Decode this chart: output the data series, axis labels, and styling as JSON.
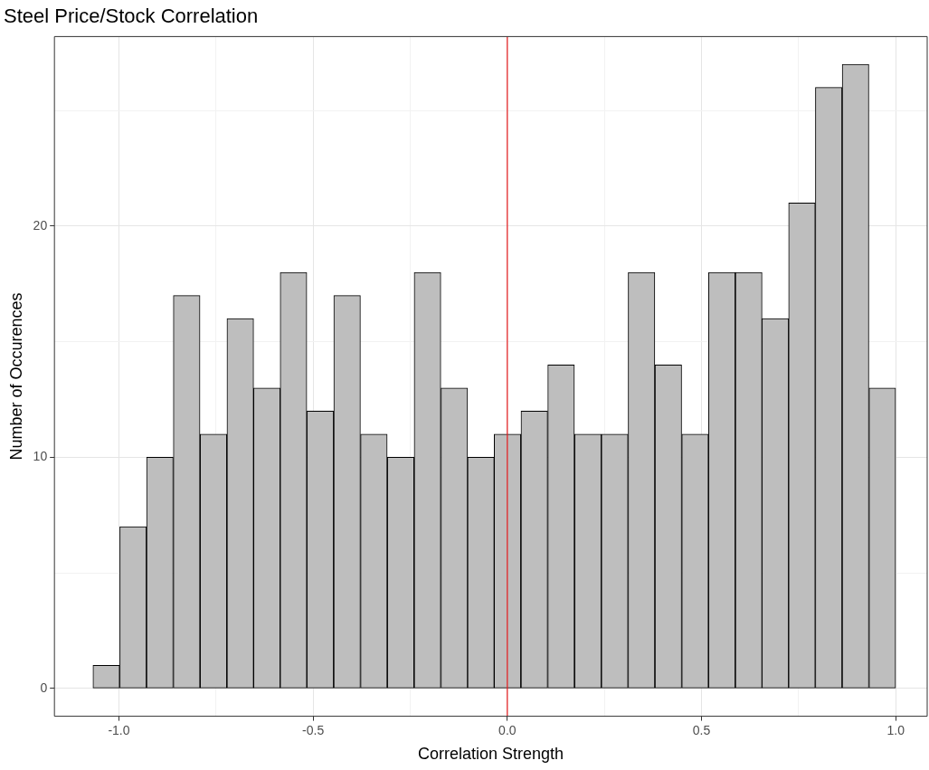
{
  "chart_data": {
    "type": "histogram",
    "title": "Steel Price/Stock Correlation",
    "xlabel": "Correlation Strength",
    "ylabel": "Number of Occurences",
    "bins": [
      -1.067,
      -0.998,
      -0.929,
      -0.86,
      -0.791,
      -0.722,
      -0.653,
      -0.585,
      -0.516,
      -0.447,
      -0.378,
      -0.309,
      -0.24,
      -0.171,
      -0.102,
      -0.034,
      0.035,
      0.104,
      0.173,
      0.242,
      0.311,
      0.38,
      0.449,
      0.518,
      0.587,
      0.656,
      0.724,
      0.793,
      0.862,
      0.931,
      1.0
    ],
    "values": [
      1,
      7,
      10,
      17,
      11,
      16,
      13,
      18,
      12,
      17,
      11,
      10,
      18,
      13,
      10,
      11,
      12,
      14,
      11,
      11,
      18,
      14,
      11,
      18,
      18,
      16,
      21,
      26,
      27,
      13
    ],
    "color": "#bebebe",
    "xlim": [
      -1.166,
      1.081
    ],
    "xticks": [
      {
        "value": -1,
        "label": "-1.0"
      },
      {
        "value": -0.75,
        "label": null
      },
      {
        "value": -0.5,
        "label": "-0.5"
      },
      {
        "value": -0.25,
        "label": null
      },
      {
        "value": 0,
        "label": "0.0"
      },
      {
        "value": 0.25,
        "label": null
      },
      {
        "value": 0.5,
        "label": "0.5"
      },
      {
        "value": 0.75,
        "label": null
      },
      {
        "value": 1,
        "label": "1.0"
      }
    ],
    "ylim": [
      -1.2,
      28.2
    ],
    "yticks": [
      0,
      {
        "value": 5,
        "label": null
      },
      10,
      {
        "value": 15,
        "label": null
      },
      20,
      {
        "value": 25,
        "label": null
      }
    ],
    "ref_lines": [
      {
        "axis": "x",
        "value": 0,
        "color": "#e41a1c"
      }
    ],
    "grid": true,
    "legend": false
  }
}
